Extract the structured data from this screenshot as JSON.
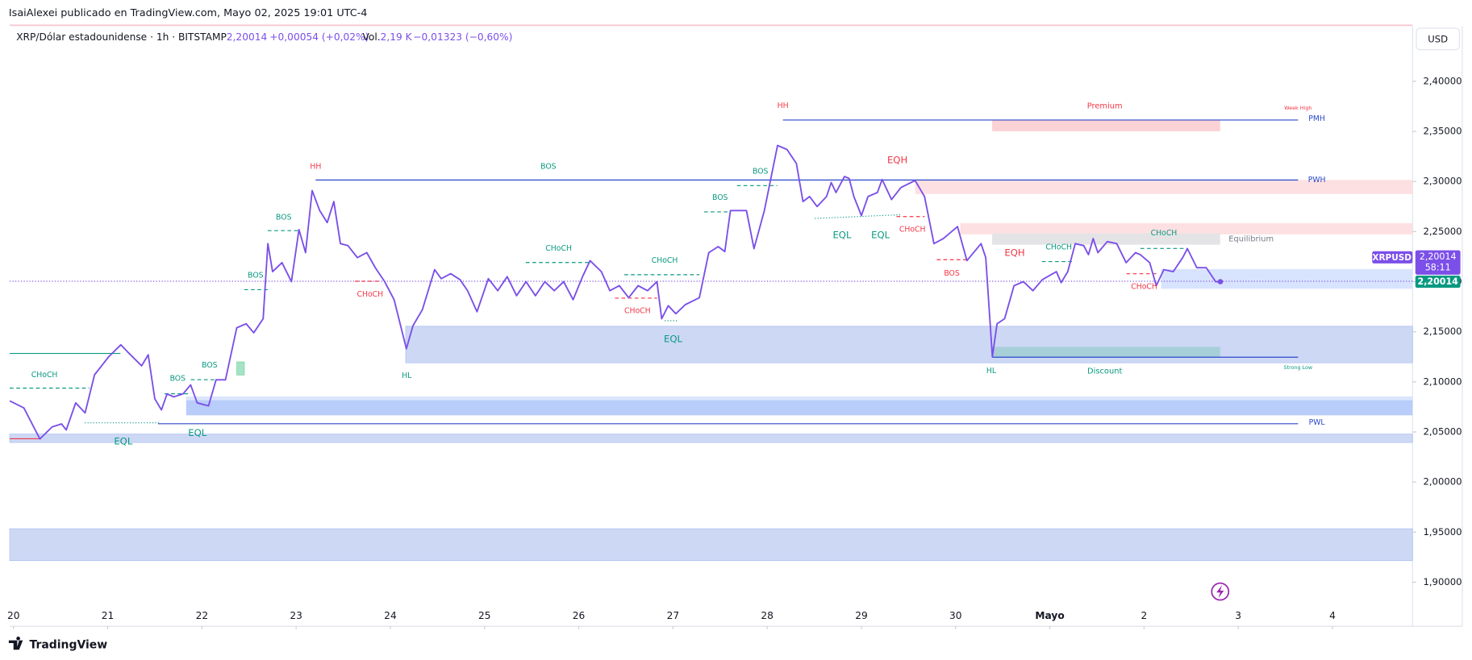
{
  "header": {
    "publisher": "IsaiAlexei publicado en TradingView.com, Mayo 02, 2025 19:01 UTC-4"
  },
  "legend": {
    "symbol": "XRP/Dólar estadounidense · 1h · BITSTAMP",
    "last": "2,20014",
    "change": "+0,00054 (+0,02%)",
    "vol_label": "Vol.",
    "vol": "2,19 K",
    "vol_change": "−0,01323 (−0,60%)"
  },
  "currency": "USD",
  "price_labels": {
    "price": "2,20014",
    "countdown": "58:11",
    "close": "2,20014"
  },
  "footer": "TradingView",
  "chart_data": {
    "type": "line",
    "x": [
      -0.04,
      0.11,
      0.28,
      0.41,
      0.51,
      0.56,
      0.66,
      0.76,
      0.86,
      1.01,
      1.14,
      1.21,
      1.36,
      1.43,
      1.5,
      1.57,
      1.63,
      1.7,
      1.8,
      1.88,
      1.95,
      2.07,
      2.15,
      2.25,
      2.37,
      2.47,
      2.55,
      2.65,
      2.7,
      2.75,
      2.85,
      2.95,
      3.03,
      3.1,
      3.17,
      3.25,
      3.33,
      3.4,
      3.47,
      3.55,
      3.65,
      3.75,
      3.84,
      3.94,
      4.04,
      4.17,
      4.24,
      4.34,
      4.47,
      4.54,
      4.64,
      4.74,
      4.82,
      4.92,
      5.04,
      5.14,
      5.24,
      5.34,
      5.44,
      5.54,
      5.64,
      5.74,
      5.84,
      5.94,
      6.04,
      6.12,
      6.24,
      6.33,
      6.43,
      6.53,
      6.63,
      6.73,
      6.83,
      6.88,
      6.95,
      7.03,
      7.13,
      7.28,
      7.38,
      7.48,
      7.55,
      7.61,
      7.68,
      7.78,
      7.86,
      7.97,
      8.11,
      8.21,
      8.31,
      8.38,
      8.45,
      8.53,
      8.63,
      8.68,
      8.73,
      8.82,
      8.87,
      8.92,
      9.0,
      9.07,
      9.17,
      9.22,
      9.32,
      9.42,
      9.57,
      9.67,
      9.77,
      9.87,
      10.02,
      10.12,
      10.27,
      10.32,
      10.39,
      10.44,
      10.52,
      10.62,
      10.72,
      10.82,
      10.92,
      11.07,
      11.12,
      11.19,
      11.27,
      11.36,
      11.41,
      11.46,
      11.51,
      11.61,
      11.71,
      11.81,
      11.91,
      11.96,
      12.06,
      12.13,
      12.21,
      12.31,
      12.41,
      12.46,
      12.56,
      12.66,
      12.76,
      12.81
    ],
    "series": [
      {
        "name": "XRPUSD",
        "color": "#7b4fe8",
        "values": [
          2.081,
          2.074,
          2.043,
          2.055,
          2.058,
          2.052,
          2.079,
          2.069,
          2.107,
          2.125,
          2.137,
          2.13,
          2.116,
          2.127,
          2.083,
          2.072,
          2.088,
          2.085,
          2.088,
          2.097,
          2.079,
          2.076,
          2.102,
          2.102,
          2.154,
          2.158,
          2.149,
          2.163,
          2.238,
          2.21,
          2.219,
          2.2,
          2.252,
          2.229,
          2.291,
          2.271,
          2.259,
          2.28,
          2.238,
          2.236,
          2.224,
          2.229,
          2.214,
          2.2,
          2.182,
          2.133,
          2.156,
          2.172,
          2.212,
          2.203,
          2.208,
          2.202,
          2.191,
          2.17,
          2.203,
          2.191,
          2.205,
          2.186,
          2.2,
          2.186,
          2.2,
          2.191,
          2.2,
          2.182,
          2.205,
          2.221,
          2.21,
          2.191,
          2.196,
          2.184,
          2.196,
          2.191,
          2.2,
          2.163,
          2.176,
          2.168,
          2.177,
          2.184,
          2.229,
          2.235,
          2.23,
          2.271,
          2.271,
          2.271,
          2.233,
          2.271,
          2.336,
          2.332,
          2.318,
          2.28,
          2.285,
          2.275,
          2.285,
          2.299,
          2.289,
          2.305,
          2.303,
          2.285,
          2.266,
          2.285,
          2.289,
          2.302,
          2.282,
          2.294,
          2.301,
          2.285,
          2.238,
          2.243,
          2.255,
          2.221,
          2.238,
          2.224,
          2.125,
          2.158,
          2.163,
          2.196,
          2.2,
          2.191,
          2.202,
          2.21,
          2.199,
          2.21,
          2.238,
          2.236,
          2.227,
          2.243,
          2.229,
          2.24,
          2.238,
          2.219,
          2.229,
          2.227,
          2.219,
          2.196,
          2.212,
          2.21,
          2.224,
          2.233,
          2.214,
          2.214,
          2.2,
          2.2
        ]
      }
    ],
    "xlim": [
      -0.04,
      14.85
    ],
    "xticks": [
      {
        "value": 0,
        "label": "20"
      },
      {
        "value": 1,
        "label": "21"
      },
      {
        "value": 2,
        "label": "22"
      },
      {
        "value": 3,
        "label": "23"
      },
      {
        "value": 4,
        "label": "24"
      },
      {
        "value": 5,
        "label": "25"
      },
      {
        "value": 6,
        "label": "26"
      },
      {
        "value": 7,
        "label": "27"
      },
      {
        "value": 8,
        "label": "28"
      },
      {
        "value": 9,
        "label": "29"
      },
      {
        "value": 10,
        "label": "30"
      },
      {
        "value": 11,
        "label": "Mayo"
      },
      {
        "value": 12,
        "label": "2"
      },
      {
        "value": 13,
        "label": "3"
      },
      {
        "value": 14,
        "label": "4"
      }
    ],
    "ylim": [
      1.856,
      2.455
    ],
    "yticks": [
      {
        "value": 1.9,
        "label": "1,90000"
      },
      {
        "value": 1.95,
        "label": "1,95000"
      },
      {
        "value": 2.0,
        "label": "2,00000"
      },
      {
        "value": 2.05,
        "label": "2,05000"
      },
      {
        "value": 2.1,
        "label": "2,10000"
      },
      {
        "value": 2.15,
        "label": "2,15000"
      },
      {
        "value": 2.2,
        "label": "2,20000"
      },
      {
        "value": 2.25,
        "label": "2,25000"
      },
      {
        "value": 2.3,
        "label": "2,30000"
      },
      {
        "value": 2.35,
        "label": "2,35000"
      },
      {
        "value": 2.4,
        "label": "2,40000"
      }
    ],
    "grid": false,
    "annotations": [
      "HH",
      "BOS",
      "BOS",
      "HH",
      "Premium",
      "Week High",
      "PMH",
      "EQH",
      "PWH",
      "BOS",
      "BOS",
      "EQL",
      "EQL",
      "CHoCH",
      "Equilibrium",
      "CHoCH",
      "CHoCH",
      "EQH",
      "BOS",
      "CHoCH",
      "BOS",
      "CHoCH",
      "CHoCH",
      "CHoCH",
      "CHoCH",
      "EQL",
      "HL",
      "CHoCH",
      "BOS",
      "BOS",
      "EQL",
      "EQL",
      "HL",
      "Discount",
      "Strong Low",
      "PWL"
    ]
  }
}
